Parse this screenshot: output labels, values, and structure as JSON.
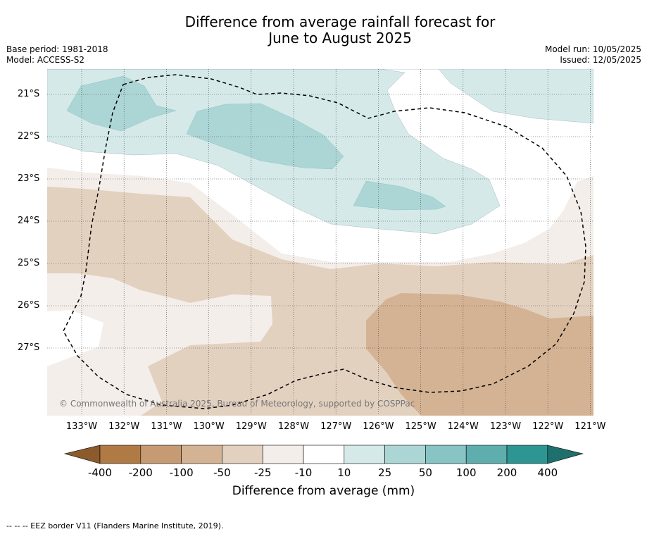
{
  "title_line1": "Difference from average rainfall forecast for",
  "title_line2": "June to August 2025",
  "base_period": "Base period: 1981-2018",
  "model": "Model: ACCESS-S2",
  "model_run": "Model run: 10/05/2025",
  "issued": "Issued: 12/05/2025",
  "lat_labels": [
    "21°S",
    "22°S",
    "23°S",
    "24°S",
    "25°S",
    "26°S",
    "27°S"
  ],
  "lon_labels": [
    "133°W",
    "132°W",
    "131°W",
    "130°W",
    "129°W",
    "128°W",
    "127°W",
    "126°W",
    "125°W",
    "124°W",
    "123°W",
    "122°W",
    "121°W"
  ],
  "copyright": "© Commonwealth of Australia 2025, Bureau of Meteorology, supported by COSPPac",
  "colorbar": {
    "ticks": [
      "-400",
      "-200",
      "-100",
      "-50",
      "-25",
      "-10",
      "10",
      "25",
      "50",
      "100",
      "200",
      "400"
    ],
    "colors": [
      "#8c5a2b",
      "#b07a45",
      "#c69a72",
      "#d4b394",
      "#e3d1c0",
      "#f4eeea",
      "#ffffff",
      "#d5e9e9",
      "#acd6d5",
      "#87c4c3",
      "#5eaeae",
      "#2e9692",
      "#1f6f6c"
    ],
    "title": "Difference from average (mm)"
  },
  "map_colors": {
    "dry_light": "#f4eeea",
    "dry_mid": "#e3d1c0",
    "dry_strong": "#d4b394",
    "wet_light": "#d5e9e9",
    "wet_mid": "#acd6d5"
  },
  "footer": "--  --  -- EEZ border V11 (Flanders Marine Institute, 2019)."
}
